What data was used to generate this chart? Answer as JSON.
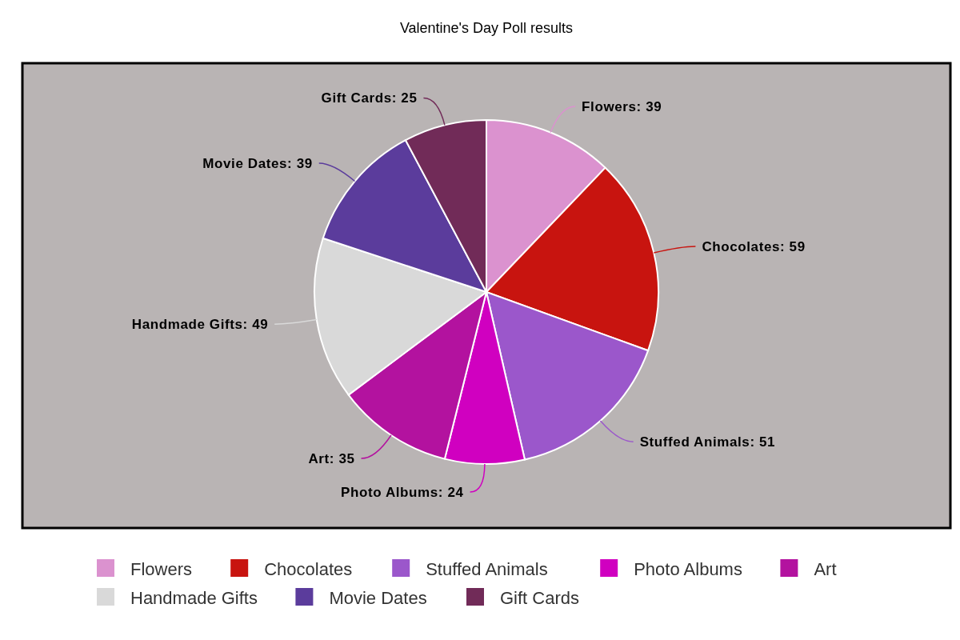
{
  "chart_data": {
    "type": "pie",
    "title": "Valentine's Day Poll results",
    "categories": [
      "Flowers",
      "Chocolates",
      "Stuffed Animals",
      "Photo Albums",
      "Art",
      "Handmade Gifts",
      "Movie Dates",
      "Gift Cards"
    ],
    "values": [
      39,
      59,
      51,
      24,
      35,
      49,
      39,
      25
    ],
    "colors": [
      "#db92cf",
      "#c8140f",
      "#9b57cb",
      "#d000c0",
      "#b3129f",
      "#d9d9d9",
      "#5b3c9c",
      "#712b58"
    ],
    "value_labels": [
      "Flowers: 39",
      "Chocolates: 59",
      "Stuffed Animals: 51",
      "Photo Albums: 24",
      "Art: 35",
      "Handmade Gifts: 49",
      "Movie Dates: 39",
      "Gift Cards: 25"
    ],
    "legend": "bottom"
  }
}
